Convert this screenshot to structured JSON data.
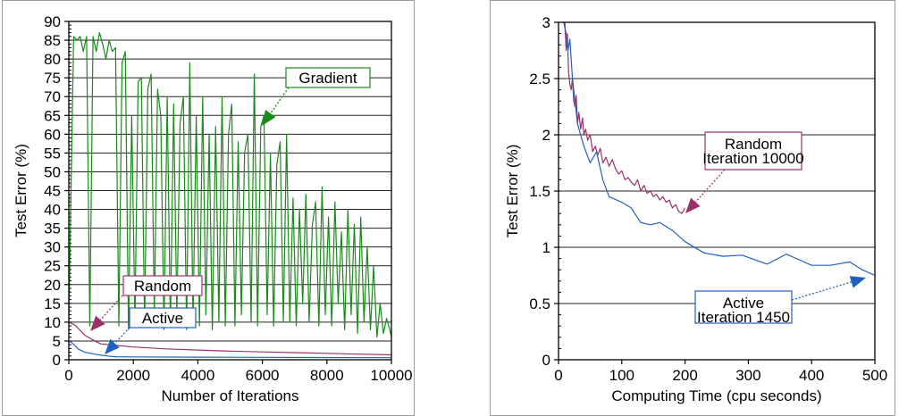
{
  "chart_data": [
    {
      "type": "line",
      "xlabel": "Number of Iterations",
      "ylabel": "Test Error (%)",
      "xlim": [
        0,
        10000
      ],
      "ylim": [
        0,
        90
      ],
      "xticks": [
        0,
        2000,
        4000,
        6000,
        8000,
        10000
      ],
      "yticks": [
        0,
        5,
        10,
        15,
        20,
        25,
        30,
        35,
        40,
        45,
        50,
        55,
        60,
        65,
        70,
        75,
        80,
        85,
        90
      ],
      "grid": "horizontal",
      "series": [
        {
          "name": "Gradient",
          "color": "#1a8a1a",
          "x": [
            0,
            150,
            250,
            350,
            450,
            550,
            650,
            750,
            850,
            950,
            1050,
            1150,
            1250,
            1350,
            1450,
            1550,
            1650,
            1750,
            1850,
            1950,
            2050,
            2150,
            2250,
            2350,
            2450,
            2550,
            2650,
            2750,
            2850,
            2950,
            3050,
            3150,
            3250,
            3350,
            3450,
            3550,
            3650,
            3750,
            3850,
            3950,
            4050,
            4150,
            4250,
            4350,
            4450,
            4550,
            4650,
            4750,
            4850,
            4950,
            5050,
            5150,
            5250,
            5350,
            5450,
            5550,
            5650,
            5750,
            5850,
            5950,
            6050,
            6150,
            6250,
            6350,
            6450,
            6550,
            6650,
            6750,
            6850,
            6950,
            7050,
            7150,
            7250,
            7350,
            7450,
            7550,
            7650,
            7750,
            7850,
            7950,
            8050,
            8150,
            8250,
            8350,
            8450,
            8550,
            8650,
            8750,
            8850,
            8950,
            9050,
            9150,
            9250,
            9350,
            9450,
            9550,
            9650,
            9750,
            9850,
            9950,
            10000
          ],
          "y": [
            10,
            86,
            85,
            86,
            82,
            86,
            9,
            86,
            82,
            87,
            84,
            80,
            85,
            82,
            83,
            9,
            79,
            82,
            8,
            65,
            10,
            74,
            75,
            9,
            72,
            76,
            12,
            72,
            65,
            8,
            70,
            9,
            68,
            12,
            63,
            70,
            8,
            79,
            10,
            65,
            9,
            70,
            12,
            60,
            8,
            62,
            10,
            70,
            9,
            60,
            68,
            9,
            58,
            12,
            55,
            60,
            10,
            76,
            9,
            62,
            65,
            12,
            55,
            9,
            52,
            58,
            10,
            60,
            10,
            43,
            9,
            40,
            15,
            44,
            10,
            36,
            42,
            9,
            46,
            12,
            38,
            9,
            42,
            15,
            34,
            8,
            40,
            12,
            36,
            7,
            38,
            10,
            30,
            8,
            25,
            6,
            15,
            7,
            11,
            8,
            6
          ]
        },
        {
          "name": "Random",
          "color": "#9a3268",
          "x": [
            0,
            200,
            500,
            800,
            1000,
            1500,
            2000,
            3000,
            4000,
            5000,
            6000,
            7000,
            8000,
            9000,
            10000
          ],
          "y": [
            10,
            9.2,
            6.5,
            5,
            4.2,
            3.8,
            3.4,
            2.9,
            2.6,
            2.3,
            2.1,
            1.9,
            1.7,
            1.5,
            1.3
          ]
        },
        {
          "name": "Active",
          "color": "#2060c0",
          "x": [
            0,
            100,
            300,
            500,
            800,
            1000,
            1200,
            1450,
            2000,
            4000,
            6000,
            8000,
            10000
          ],
          "y": [
            5,
            4.5,
            2.8,
            2.0,
            1.5,
            1.2,
            1.0,
            0.8,
            0.75,
            0.7,
            0.65,
            0.6,
            0.55
          ]
        }
      ],
      "annotations": [
        {
          "text": "Gradient",
          "color": "#1a8a1a"
        },
        {
          "text": "Random",
          "color": "#9a3268"
        },
        {
          "text": "Active",
          "color": "#2060c0"
        }
      ]
    },
    {
      "type": "line",
      "xlabel": "Computing Time (cpu seconds)",
      "ylabel": "Test Error (%)",
      "xlim": [
        0,
        500
      ],
      "ylim": [
        0,
        3
      ],
      "xticks": [
        0,
        100,
        200,
        300,
        400,
        500
      ],
      "yticks": [
        0,
        0.5,
        1,
        1.5,
        2,
        2.5,
        3
      ],
      "ytick_labels": [
        "0",
        "0.5",
        "1",
        "1.5",
        "2",
        "2.5",
        "3"
      ],
      "grid": "horizontal",
      "series": [
        {
          "name": "Random",
          "color": "#9a3268",
          "x": [
            10,
            12,
            14,
            16,
            18,
            20,
            22,
            24,
            26,
            28,
            30,
            32,
            35,
            38,
            40,
            43,
            46,
            50,
            54,
            58,
            62,
            66,
            70,
            75,
            80,
            85,
            90,
            95,
            100,
            105,
            110,
            115,
            120,
            125,
            130,
            135,
            140,
            145,
            150,
            155,
            160,
            165,
            170,
            175,
            180,
            185,
            190,
            195,
            200
          ],
          "y": [
            3.0,
            2.75,
            2.9,
            2.55,
            2.45,
            2.4,
            2.5,
            2.3,
            2.25,
            2.35,
            2.1,
            2.2,
            2.05,
            2.15,
            2.0,
            2.05,
            1.95,
            2.0,
            1.85,
            1.9,
            1.82,
            1.88,
            1.75,
            1.8,
            1.72,
            1.78,
            1.7,
            1.65,
            1.68,
            1.6,
            1.62,
            1.58,
            1.55,
            1.6,
            1.5,
            1.55,
            1.48,
            1.5,
            1.45,
            1.47,
            1.42,
            1.45,
            1.4,
            1.42,
            1.35,
            1.38,
            1.32,
            1.3,
            1.35
          ]
        },
        {
          "name": "Active",
          "color": "#2060c0",
          "x": [
            8,
            12,
            15,
            18,
            22,
            30,
            40,
            50,
            60,
            70,
            80,
            100,
            115,
            130,
            145,
            160,
            180,
            200,
            230,
            260,
            290,
            330,
            360,
            400,
            430,
            460,
            480,
            500
          ],
          "y": [
            3.0,
            2.9,
            2.75,
            2.85,
            2.5,
            2.1,
            1.9,
            1.75,
            1.85,
            1.6,
            1.45,
            1.4,
            1.35,
            1.22,
            1.2,
            1.22,
            1.15,
            1.05,
            0.95,
            0.92,
            0.93,
            0.85,
            0.94,
            0.84,
            0.84,
            0.87,
            0.8,
            0.75
          ]
        }
      ],
      "annotations": [
        {
          "text": "Random",
          "sub": "Iteration 10000",
          "color": "#9a3268"
        },
        {
          "text": "Active",
          "sub": "Iteration 1450",
          "color": "#2060c0"
        }
      ]
    }
  ]
}
